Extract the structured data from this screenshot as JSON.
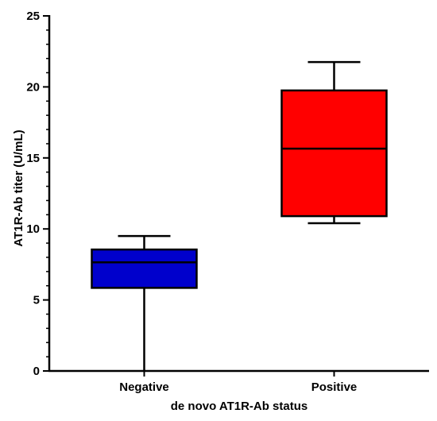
{
  "chart_data": {
    "type": "box",
    "title": "",
    "xlabel": "de novo AT1R-Ab status",
    "ylabel": "AT1R-Ab titer (U/mL)",
    "ylim": [
      0,
      25
    ],
    "yticks": [
      0,
      5,
      10,
      15,
      20,
      25
    ],
    "ytick_labels": [
      "0",
      "5",
      "10",
      "15",
      "20",
      "25"
    ],
    "grid": false,
    "legend": "none",
    "categories": [
      "Negative",
      "Positive"
    ],
    "boxes": [
      {
        "category": "Negative",
        "min": 0,
        "q1": 5.85,
        "median": 7.65,
        "q3": 8.55,
        "max": 9.5,
        "color": "#0000cc"
      },
      {
        "category": "Positive",
        "min": 10.4,
        "q1": 10.9,
        "median": 15.65,
        "q3": 19.75,
        "max": 21.75,
        "color": "#ff0000"
      }
    ]
  }
}
